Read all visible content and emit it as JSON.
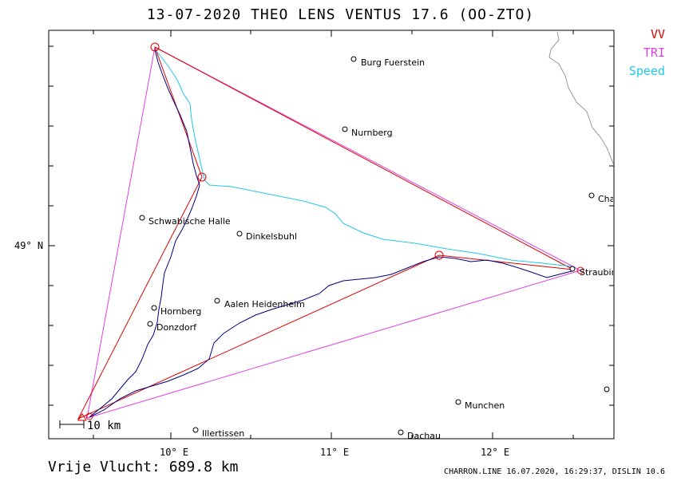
{
  "header": {
    "title": "13-07-2020   THEO LENS   VENTUS 17.6 (OO-ZTO)"
  },
  "legend": [
    {
      "label": "VV",
      "color": "#e00000"
    },
    {
      "label": "TRI",
      "color": "#e040e0"
    },
    {
      "label": "Speed",
      "color": "#20c8e8"
    }
  ],
  "axes": {
    "lat_label": "49° N",
    "lon_labels": [
      "10° E",
      "11° E",
      "12° E"
    ]
  },
  "scale": {
    "label": "10 km"
  },
  "cities": [
    {
      "name": "Burg Fuerstein"
    },
    {
      "name": "Nurnberg"
    },
    {
      "name": "Schwabische Halle"
    },
    {
      "name": "Dinkelsbuhl"
    },
    {
      "name": "Aalen Heidenheim"
    },
    {
      "name": "Hornberg"
    },
    {
      "name": "Donzdorf"
    },
    {
      "name": "Illertissen"
    },
    {
      "name": "Dachau"
    },
    {
      "name": "Munchen"
    },
    {
      "name": "Straubing"
    },
    {
      "name": "Cha"
    }
  ],
  "footer": {
    "distance": "Vrije Vlucht:  689.8 km",
    "credits": "CHARRON.LINE 16.07.2020, 16:29:37, DISLIN 10.6"
  },
  "colors": {
    "track": "#000080",
    "vv": "#e00000",
    "tri": "#e040e0",
    "speed": "#20c8e8",
    "border": "#999999"
  }
}
